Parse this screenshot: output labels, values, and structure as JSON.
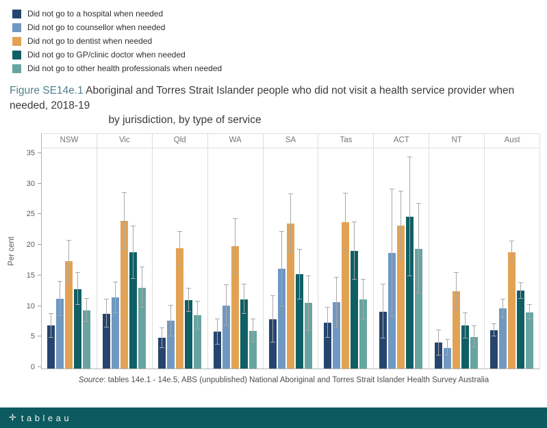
{
  "legend": {
    "items": [
      {
        "label": "Did not go to a hospital when needed",
        "color": "#26456e"
      },
      {
        "label": "Did not go to counsellor when needed",
        "color": "#7098c1"
      },
      {
        "label": "Did not go to dentist when needed",
        "color": "#e2a254"
      },
      {
        "label": "Did not go to GP/clinic doctor when needed",
        "color": "#0f5f64"
      },
      {
        "label": "Did not go to other health professionals when needed",
        "color": "#67a4a1"
      }
    ]
  },
  "title": {
    "prefix": "Figure SE14e.1",
    "main": " Aboriginal and Torres Strait Islander people who did not visit a health service provider when needed, 2018-19",
    "sub": "by jurisdiction, by type of service"
  },
  "chart_data": {
    "type": "bar",
    "title": "Figure SE14e.1 Aboriginal and Torres Strait Islander people who did not visit a health service provider when needed, 2018-19, by jurisdiction, by type of service",
    "categories": [
      "NSW",
      "Vic",
      "Qld",
      "WA",
      "SA",
      "Tas",
      "ACT",
      "NT",
      "Aust"
    ],
    "series": [
      {
        "name": "Did not go to a hospital when needed",
        "color": "#26456e",
        "values": [
          7.0,
          9.0,
          5.0,
          6.0,
          8.0,
          7.5,
          9.3,
          4.2,
          6.3
        ],
        "ci_low": [
          5.0,
          6.7,
          3.4,
          3.9,
          4.2,
          5.0,
          4.9,
          2.1,
          5.3
        ],
        "ci_high": [
          9.0,
          11.3,
          6.6,
          8.1,
          11.8,
          10.0,
          13.7,
          6.3,
          7.3
        ]
      },
      {
        "name": "Did not go to counsellor when needed",
        "color": "#7098c1",
        "values": [
          11.4,
          11.6,
          7.8,
          10.3,
          16.3,
          10.8,
          18.9,
          3.4,
          9.8
        ],
        "ci_low": [
          8.6,
          9.1,
          5.3,
          7.0,
          10.2,
          6.7,
          8.5,
          2.1,
          8.3
        ],
        "ci_high": [
          14.2,
          14.1,
          10.3,
          13.6,
          22.4,
          14.9,
          29.3,
          4.7,
          11.3
        ]
      },
      {
        "name": "Did not go to dentist when needed",
        "color": "#e2a254",
        "values": [
          17.5,
          24.1,
          19.7,
          20.0,
          23.7,
          23.9,
          23.4,
          12.6,
          19.0
        ],
        "ci_low": [
          14.1,
          19.5,
          17.0,
          15.5,
          18.9,
          19.2,
          17.8,
          9.6,
          17.2
        ],
        "ci_high": [
          20.9,
          28.7,
          22.4,
          24.5,
          28.5,
          28.6,
          29.0,
          15.6,
          20.8
        ]
      },
      {
        "name": "Did not go to GP/clinic doctor when needed",
        "color": "#0f5f64",
        "values": [
          13.0,
          19.0,
          11.2,
          11.3,
          15.4,
          19.2,
          24.8,
          7.0,
          12.7
        ],
        "ci_low": [
          10.4,
          14.7,
          9.3,
          8.9,
          11.3,
          14.5,
          15.1,
          4.9,
          11.4
        ],
        "ci_high": [
          15.6,
          23.3,
          13.1,
          13.7,
          19.5,
          23.9,
          34.5,
          9.1,
          14.0
        ]
      },
      {
        "name": "Did not go to other health professionals when needed",
        "color": "#67a4a1",
        "values": [
          9.5,
          13.2,
          8.7,
          6.2,
          10.7,
          11.3,
          19.6,
          5.2,
          9.2
        ],
        "ci_low": [
          7.6,
          9.9,
          6.4,
          4.4,
          6.3,
          8.1,
          12.3,
          3.5,
          8.0
        ],
        "ci_high": [
          11.4,
          16.5,
          11.0,
          8.0,
          15.1,
          14.5,
          26.9,
          6.9,
          10.4
        ]
      }
    ],
    "xlabel": "",
    "ylabel": "Per cent",
    "yticks": [
      0,
      5,
      10,
      15,
      20,
      25,
      30,
      35
    ],
    "ylim": [
      0,
      36
    ],
    "grid": false,
    "legend_position": "top-left",
    "error_bars": true
  },
  "source": {
    "prefix": "Source",
    "text": ": tables 14e.1 - 14e.5, ABS (unpublished) National Aboriginal and Torres Strait Islander Health Survey Australia"
  },
  "footer": {
    "logo_text": "tableau"
  }
}
